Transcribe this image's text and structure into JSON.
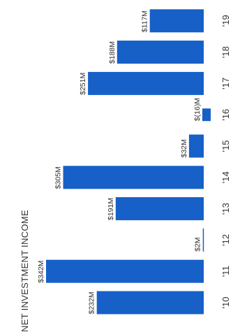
{
  "chart_data": {
    "type": "bar",
    "orientation": "horizontal-rotated",
    "title": "NET INVESTMENT INCOME",
    "categories": [
      "'10",
      "'11",
      "'12",
      "'13",
      "'14",
      "'15",
      "'16",
      "'17",
      "'18",
      "'19"
    ],
    "values": [
      232,
      342,
      2,
      191,
      305,
      32,
      -16,
      251,
      188,
      117
    ],
    "value_labels": [
      "$232M",
      "$342M",
      "$2M",
      "$191M",
      "$305M",
      "$32M",
      "$(16)M",
      "$251M",
      "$188M",
      "$117M"
    ],
    "unit": "$M",
    "ylim": [
      -16,
      342
    ],
    "grid": false,
    "legend": "none",
    "color": "#1660c8"
  }
}
